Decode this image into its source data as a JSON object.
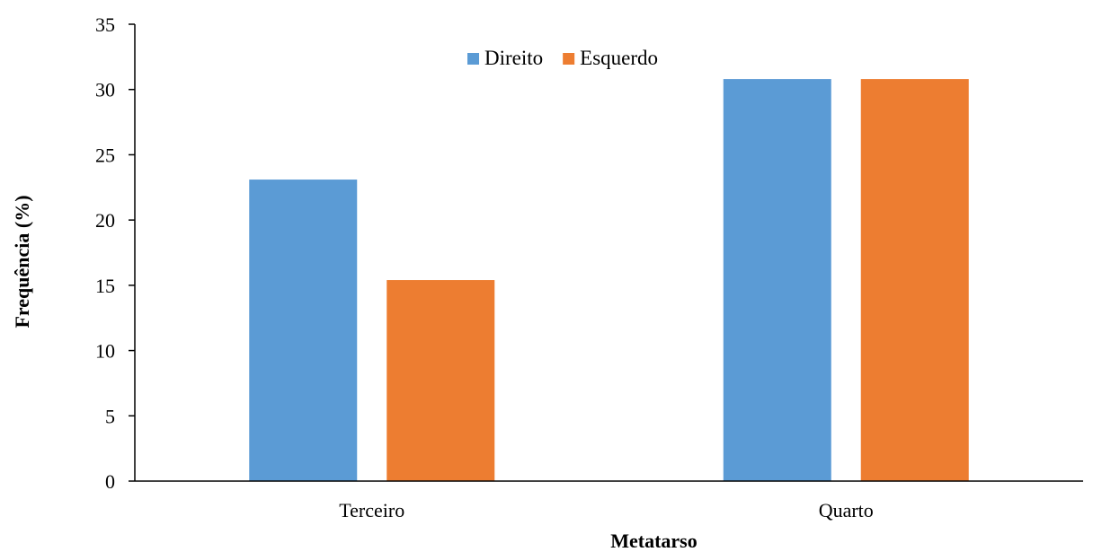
{
  "chart_data": {
    "type": "bar",
    "categories": [
      "Terceiro",
      "Quarto"
    ],
    "series": [
      {
        "name": "Direito",
        "values": [
          23.1,
          30.8
        ],
        "color": "#5b9bd5"
      },
      {
        "name": "Esquerdo",
        "values": [
          15.4,
          30.8
        ],
        "color": "#ed7d31"
      }
    ],
    "xlabel": "Metatarso",
    "ylabel": "Frequência (%)",
    "ylim": [
      0,
      35
    ],
    "yticks": [
      0,
      5,
      10,
      15,
      20,
      25,
      30,
      35
    ],
    "grid": false,
    "legend_position": "top-center"
  }
}
